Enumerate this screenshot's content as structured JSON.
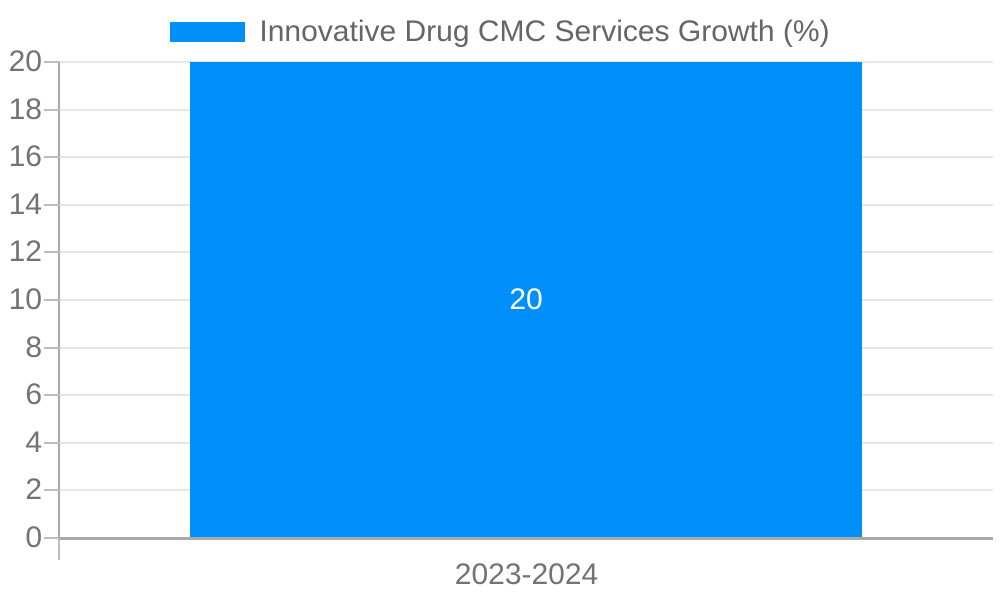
{
  "chart_data": {
    "type": "bar",
    "title": "",
    "categories": [
      "2023-2024"
    ],
    "series": [
      {
        "name": "Innovative Drug CMC Services Growth (%)",
        "values": [
          20
        ]
      }
    ],
    "data_labels": [
      20
    ],
    "xlabel": "",
    "ylabel": "",
    "ylim": [
      0,
      20
    ],
    "y_ticks": [
      0,
      2,
      4,
      6,
      8,
      10,
      12,
      14,
      16,
      18,
      20
    ],
    "grid": "horizontal",
    "legend_position": "top",
    "colors": {
      "bar": "#008FFB",
      "grid": "#e6e6e6",
      "axis": "#a9a9a9",
      "tick": "#bdbdbd",
      "tick_text": "#737373",
      "legend_text": "#666666",
      "bar_label_text": "#ffffff"
    }
  }
}
